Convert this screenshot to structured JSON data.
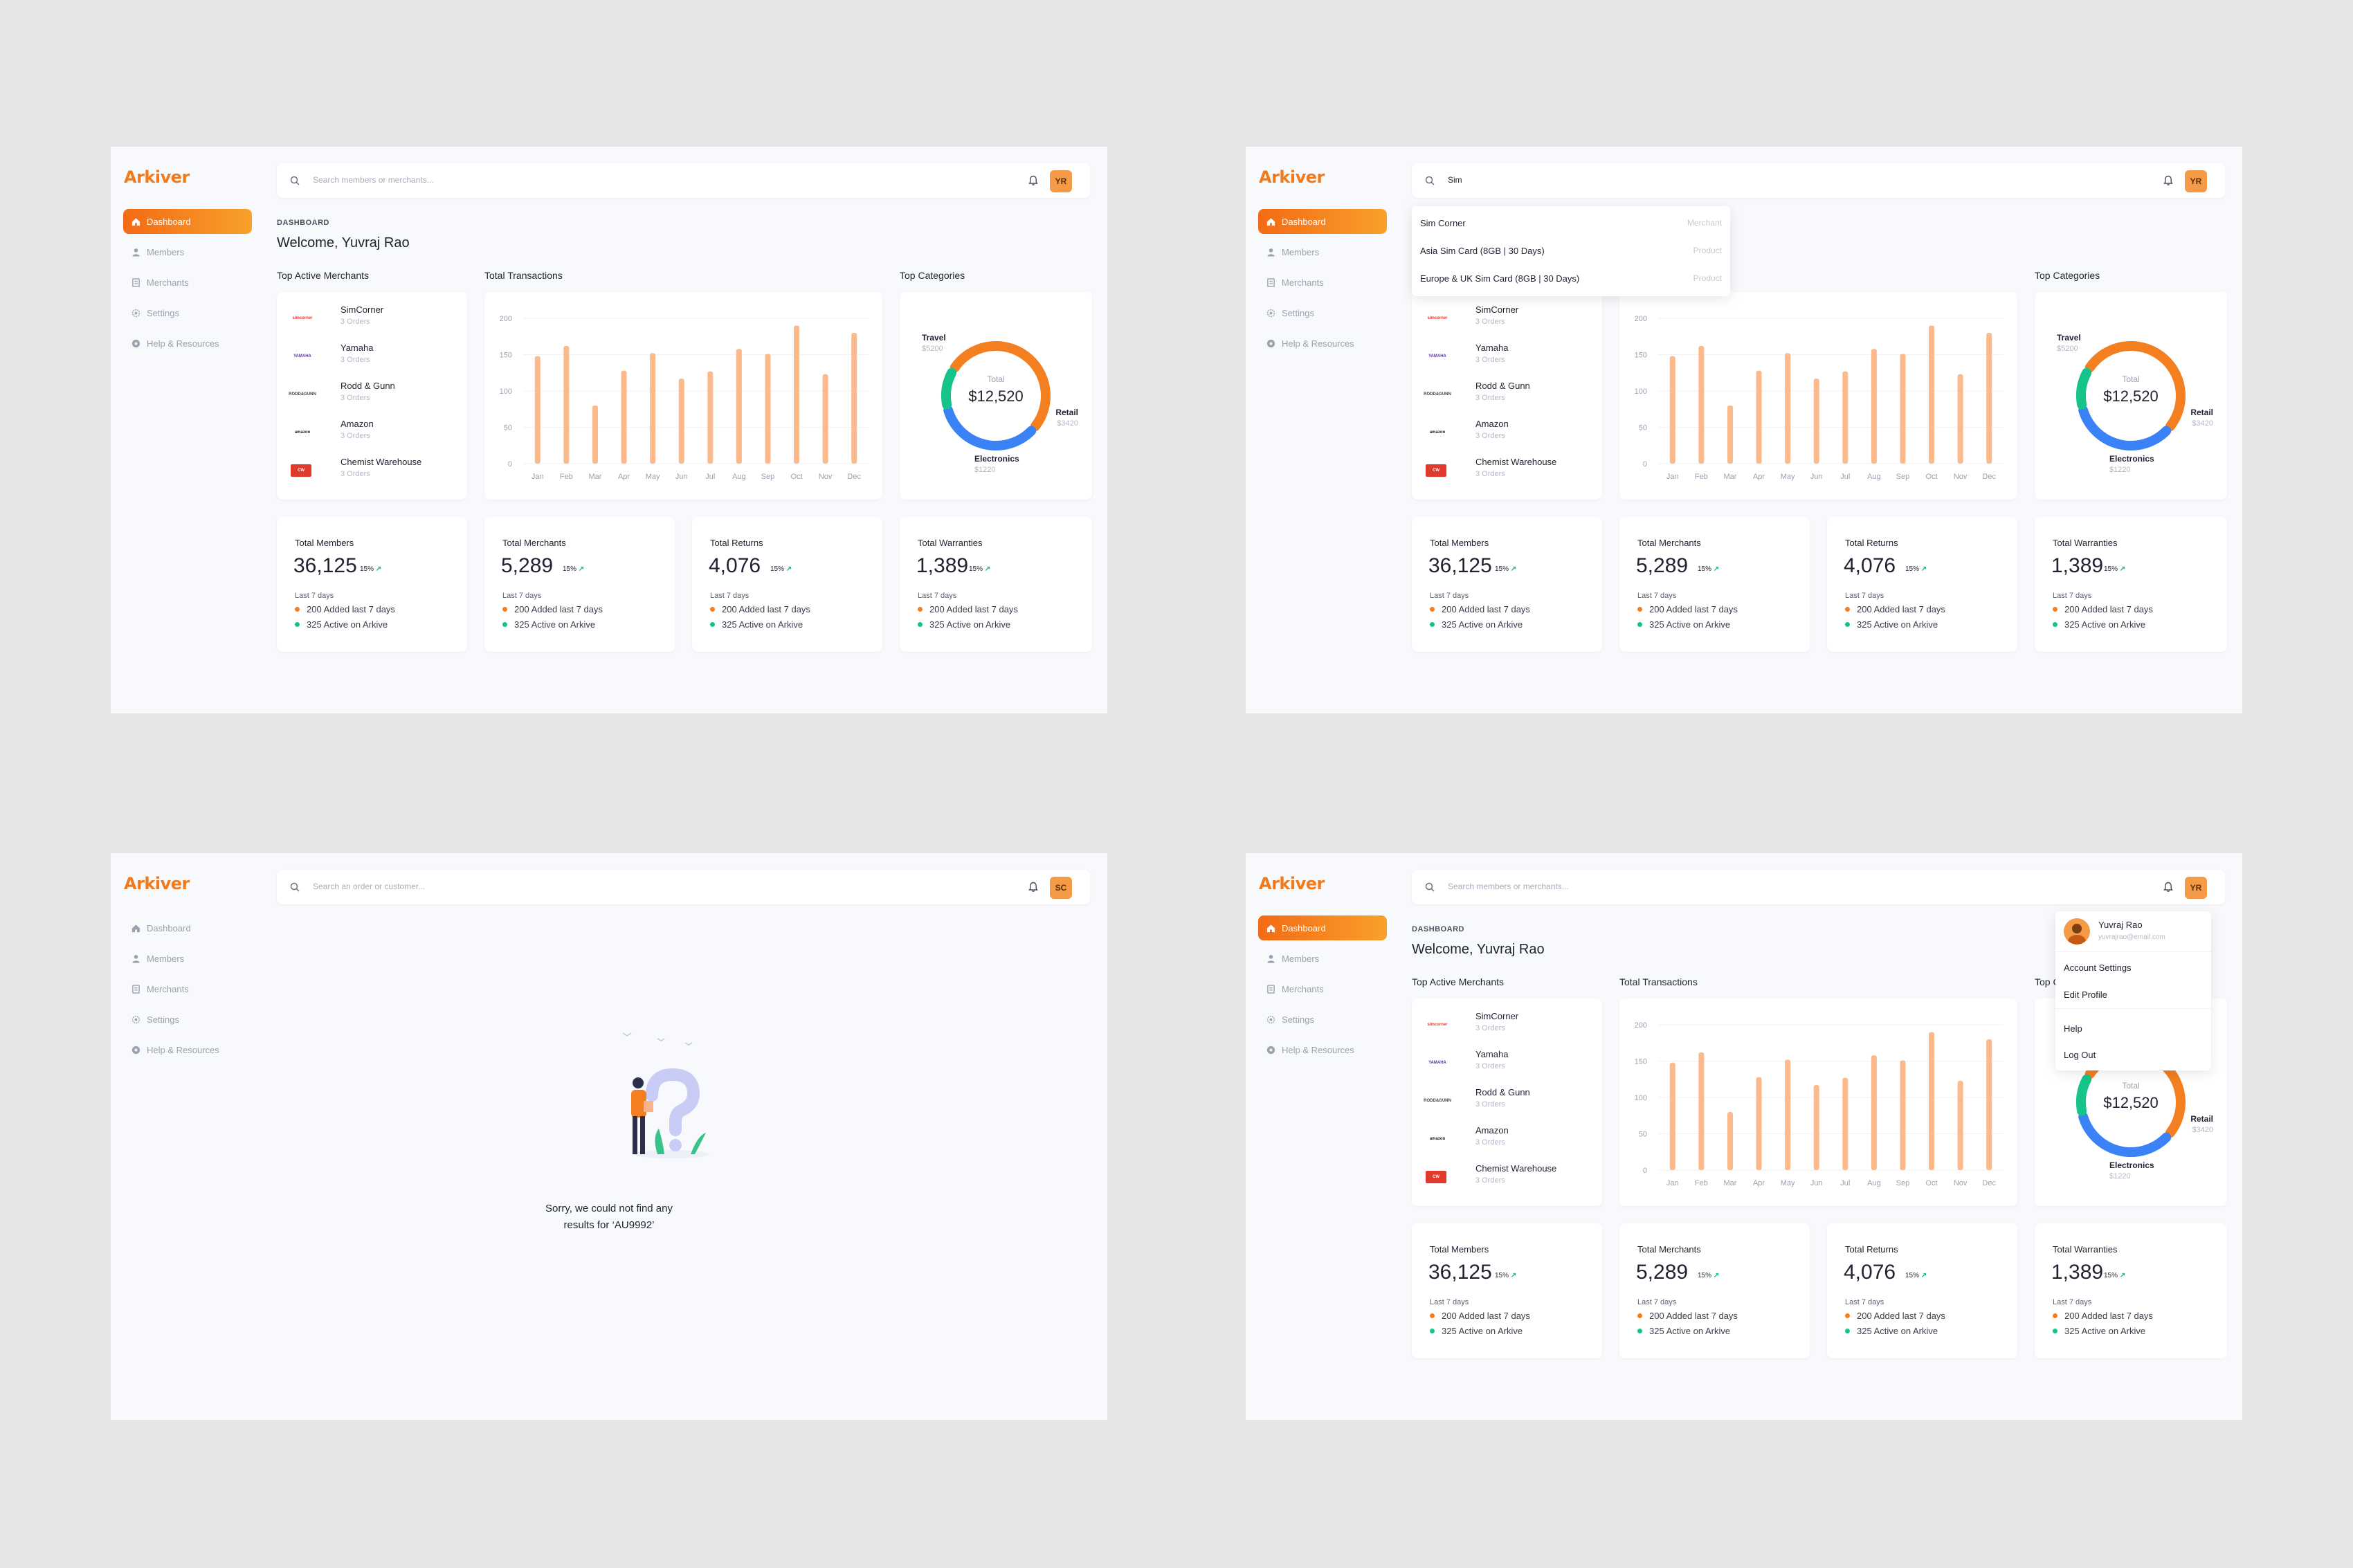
{
  "app": {
    "name": "Arkiver"
  },
  "nav": [
    {
      "label": "Dashboard"
    },
    {
      "label": "Members"
    },
    {
      "label": "Merchants"
    },
    {
      "label": "Settings"
    },
    {
      "label": "Help & Resources"
    }
  ],
  "search": {
    "placeholder": "Search members or merchants...",
    "typed": "Sim",
    "order_placeholder": "Search an order or customer..."
  },
  "user": {
    "initials": "YR",
    "alt_initials": "SC",
    "name": "Yuvraj Rao",
    "email": "yuvrajrao@email.com"
  },
  "dashboard": {
    "crumb": "DASHBOARD",
    "welcome": "Welcome, Yuvraj Rao",
    "merchants_title": "Top Active Merchants",
    "transactions_title": "Total Transactions",
    "categories_title": "Top Categories"
  },
  "merchants": [
    {
      "name": "SimCorner",
      "orders": "3 Orders",
      "logo": "simcorner"
    },
    {
      "name": "Yamaha",
      "orders": "3 Orders",
      "logo": "YAMAHA"
    },
    {
      "name": "Rodd & Gunn",
      "orders": "3 Orders",
      "logo": "RODD&GUNN"
    },
    {
      "name": "Amazon",
      "orders": "3 Orders",
      "logo": "amazon"
    },
    {
      "name": "Chemist Warehouse",
      "orders": "3 Orders",
      "logo": "CW"
    }
  ],
  "chart_data": [
    {
      "type": "bar",
      "title": "Total Transactions",
      "categories": [
        "Jan",
        "Feb",
        "Mar",
        "Apr",
        "May",
        "Jun",
        "Jul",
        "Aug",
        "Sep",
        "Oct",
        "Nov",
        "Dec"
      ],
      "values": [
        148,
        162,
        80,
        128,
        152,
        117,
        127,
        158,
        151,
        190,
        123,
        180
      ],
      "ylim": [
        0,
        200
      ],
      "yticks": [
        "200",
        "150",
        "100",
        "50",
        "0"
      ],
      "color": "#fbb98c"
    },
    {
      "type": "pie",
      "title": "Top Categories",
      "center_label": "Total",
      "center_value": "$12,520",
      "slices": [
        {
          "name": "Travel",
          "label": "$5200",
          "value": 5200,
          "color": "#f47f20"
        },
        {
          "name": "Retail",
          "label": "$3420",
          "value": 3420,
          "color": "#3b82f6"
        },
        {
          "name": "Electronics",
          "label": "$1220",
          "value": 1220,
          "color": "#16c48a"
        }
      ]
    }
  ],
  "stats": [
    {
      "title": "Total Members",
      "value": "36,125",
      "pct": "15%"
    },
    {
      "title": "Total Merchants",
      "value": "5,289",
      "pct": "15%"
    },
    {
      "title": "Total Returns",
      "value": "4,076",
      "pct": "15%"
    },
    {
      "title": "Total Warranties",
      "value": "1,389",
      "pct": "15%"
    }
  ],
  "stat_common": {
    "period": "Last 7 days",
    "added": "200 Added last 7 days",
    "active": "325 Active on Arkive"
  },
  "search_results": [
    {
      "name": "Sim Corner",
      "kind": "Merchant"
    },
    {
      "name": "Asia Sim Card (8GB | 30 Days)",
      "kind": "Product"
    },
    {
      "name": "Europe & UK Sim Card (8GB | 30 Days)",
      "kind": "Product"
    }
  ],
  "user_menu": [
    "Account Settings",
    "Edit Profile",
    "Help",
    "Log Out"
  ],
  "empty": {
    "line1": "Sorry, we could not find any",
    "line2": "results for ‘AU9992’"
  },
  "colors": {
    "accent": "#f27a1a",
    "bar": "#fbb98c",
    "up": "#16b97d",
    "dot_orange": "#f47f20",
    "dot_green": "#16c48a"
  }
}
